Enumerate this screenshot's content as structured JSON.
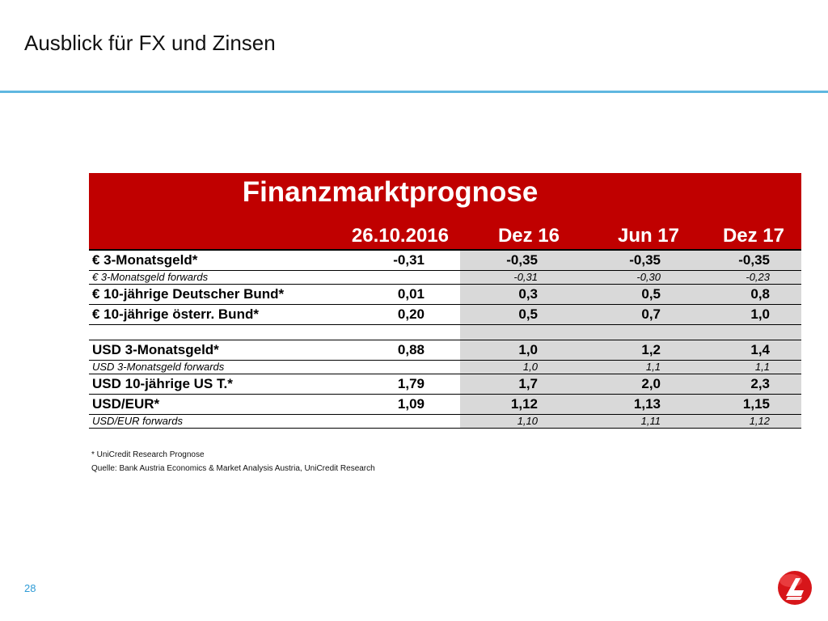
{
  "slide": {
    "title": "Ausblick für FX und Zinsen",
    "page_number": "28"
  },
  "table": {
    "title": "Finanzmarktprognose",
    "columns": [
      "26.10.2016",
      "Dez 16",
      "Jun 17",
      "Dez 17"
    ],
    "rows": [
      {
        "type": "main",
        "label": "€ 3-Monatsgeld*",
        "values": [
          "-0,31",
          "-0,35",
          "-0,35",
          "-0,35"
        ]
      },
      {
        "type": "fwd",
        "label": "€ 3-Monatsgeld forwards",
        "values": [
          "",
          "-0,31",
          "-0,30",
          "-0,23"
        ]
      },
      {
        "type": "main",
        "label": "€ 10-jährige Deutscher Bund*",
        "values": [
          "0,01",
          "0,3",
          "0,5",
          "0,8"
        ]
      },
      {
        "type": "main",
        "label": "€ 10-jährige österr. Bund*",
        "values": [
          "0,20",
          "0,5",
          "0,7",
          "1,0"
        ]
      },
      {
        "type": "spacer",
        "label": "",
        "values": [
          "",
          "",
          "",
          ""
        ]
      },
      {
        "type": "main",
        "label": "USD 3-Monatsgeld*",
        "values": [
          "0,88",
          "1,0",
          "1,2",
          "1,4"
        ]
      },
      {
        "type": "fwd",
        "label": "USD 3-Monatsgeld forwards",
        "values": [
          "",
          "1,0",
          "1,1",
          "1,1"
        ]
      },
      {
        "type": "main",
        "label": "USD 10-jährige US T.*",
        "values": [
          "1,79",
          "1,7",
          "2,0",
          "2,3"
        ]
      },
      {
        "type": "main",
        "label": "USD/EUR*",
        "values": [
          "1,09",
          "1,12",
          "1,13",
          "1,15"
        ]
      },
      {
        "type": "fwd",
        "label": "USD/EUR forwards",
        "values": [
          "",
          "1,10",
          "1,11",
          "1,12"
        ]
      }
    ]
  },
  "footnotes": {
    "note": "* UniCredit Research Prognose",
    "source": "Quelle: Bank Austria Economics & Market Analysis Austria, UniCredit Research"
  },
  "colors": {
    "header_red": "#c00000",
    "rule_blue": "#5fb7e0",
    "shade_grey": "#d9d9d9",
    "page_number_blue": "#2e9bd6"
  },
  "icons": {
    "logo": "unicredit-logo-icon"
  }
}
